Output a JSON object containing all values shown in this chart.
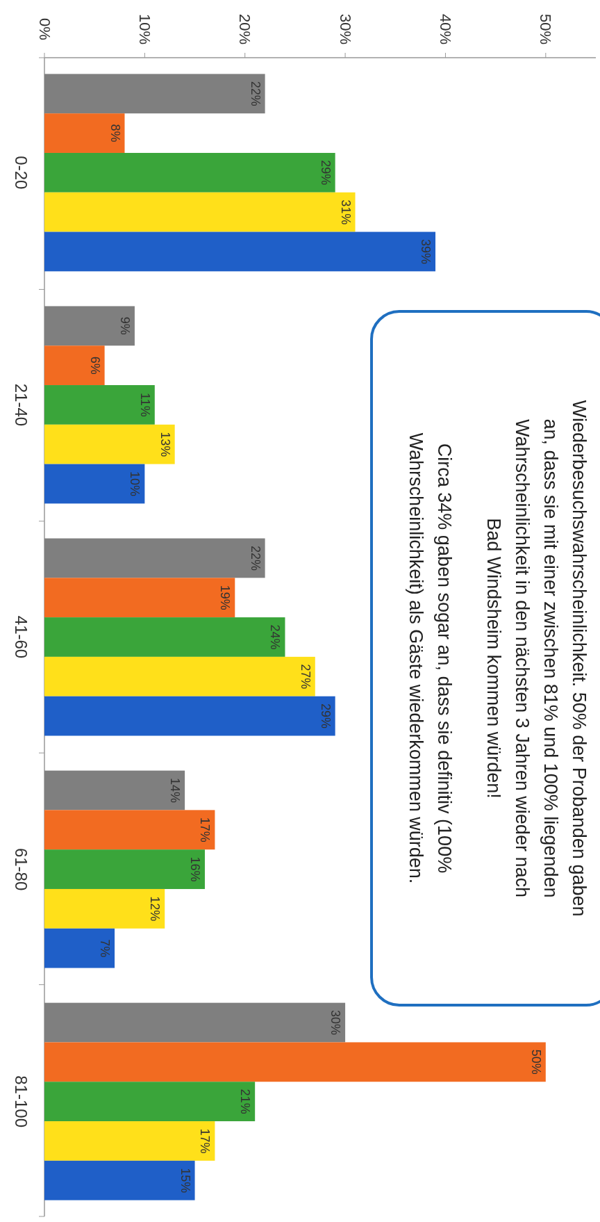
{
  "chart_data": {
    "type": "bar",
    "orientation": "horizontal",
    "categories": [
      "0-20",
      "21-40",
      "41-60",
      "61-80",
      "81-100"
    ],
    "series": [
      {
        "color": "#7f7f7f",
        "values": [
          22,
          9,
          22,
          14,
          30
        ]
      },
      {
        "color": "#f26b21",
        "values": [
          8,
          6,
          19,
          17,
          50
        ]
      },
      {
        "color": "#3aa53a",
        "values": [
          29,
          11,
          24,
          16,
          21
        ]
      },
      {
        "color": "#ffe01a",
        "values": [
          31,
          13,
          27,
          12,
          17
        ]
      },
      {
        "color": "#1f5fc8",
        "values": [
          39,
          10,
          29,
          7,
          15
        ]
      }
    ],
    "xlim": [
      0,
      55
    ],
    "xticks": [
      {
        "value": 0,
        "label": "0%"
      },
      {
        "value": 10,
        "label": "10%"
      },
      {
        "value": 20,
        "label": "20%"
      },
      {
        "value": 30,
        "label": "30%"
      },
      {
        "value": 40,
        "label": "40%"
      },
      {
        "value": 50,
        "label": "50%"
      }
    ],
    "value_labels": [
      [
        "22%",
        "9%",
        "22%",
        "14%",
        "30%"
      ],
      [
        "8%",
        "6%",
        "19%",
        "17%",
        "50%"
      ],
      [
        "29%",
        "11%",
        "24%",
        "16%",
        "21%"
      ],
      [
        "31%",
        "13%",
        "27%",
        "12%",
        "17%"
      ],
      [
        "39%",
        "10%",
        "29%",
        "7%",
        "15%"
      ]
    ],
    "annotations": [
      "Wiederbesuchswahrscheinlichkeit. 50% der Probanden gaben an, dass sie mit einer zwischen 81% und 100% liegenden Wahrscheinlichkeit in den nächsten 3 Jahren wieder nach Bad Windsheim kommen würden!",
      "Circa 34% gaben sogar an, dass sie definitiv (100% Wahrscheinlichkeit) als Gäste wiederkommen würden."
    ]
  }
}
